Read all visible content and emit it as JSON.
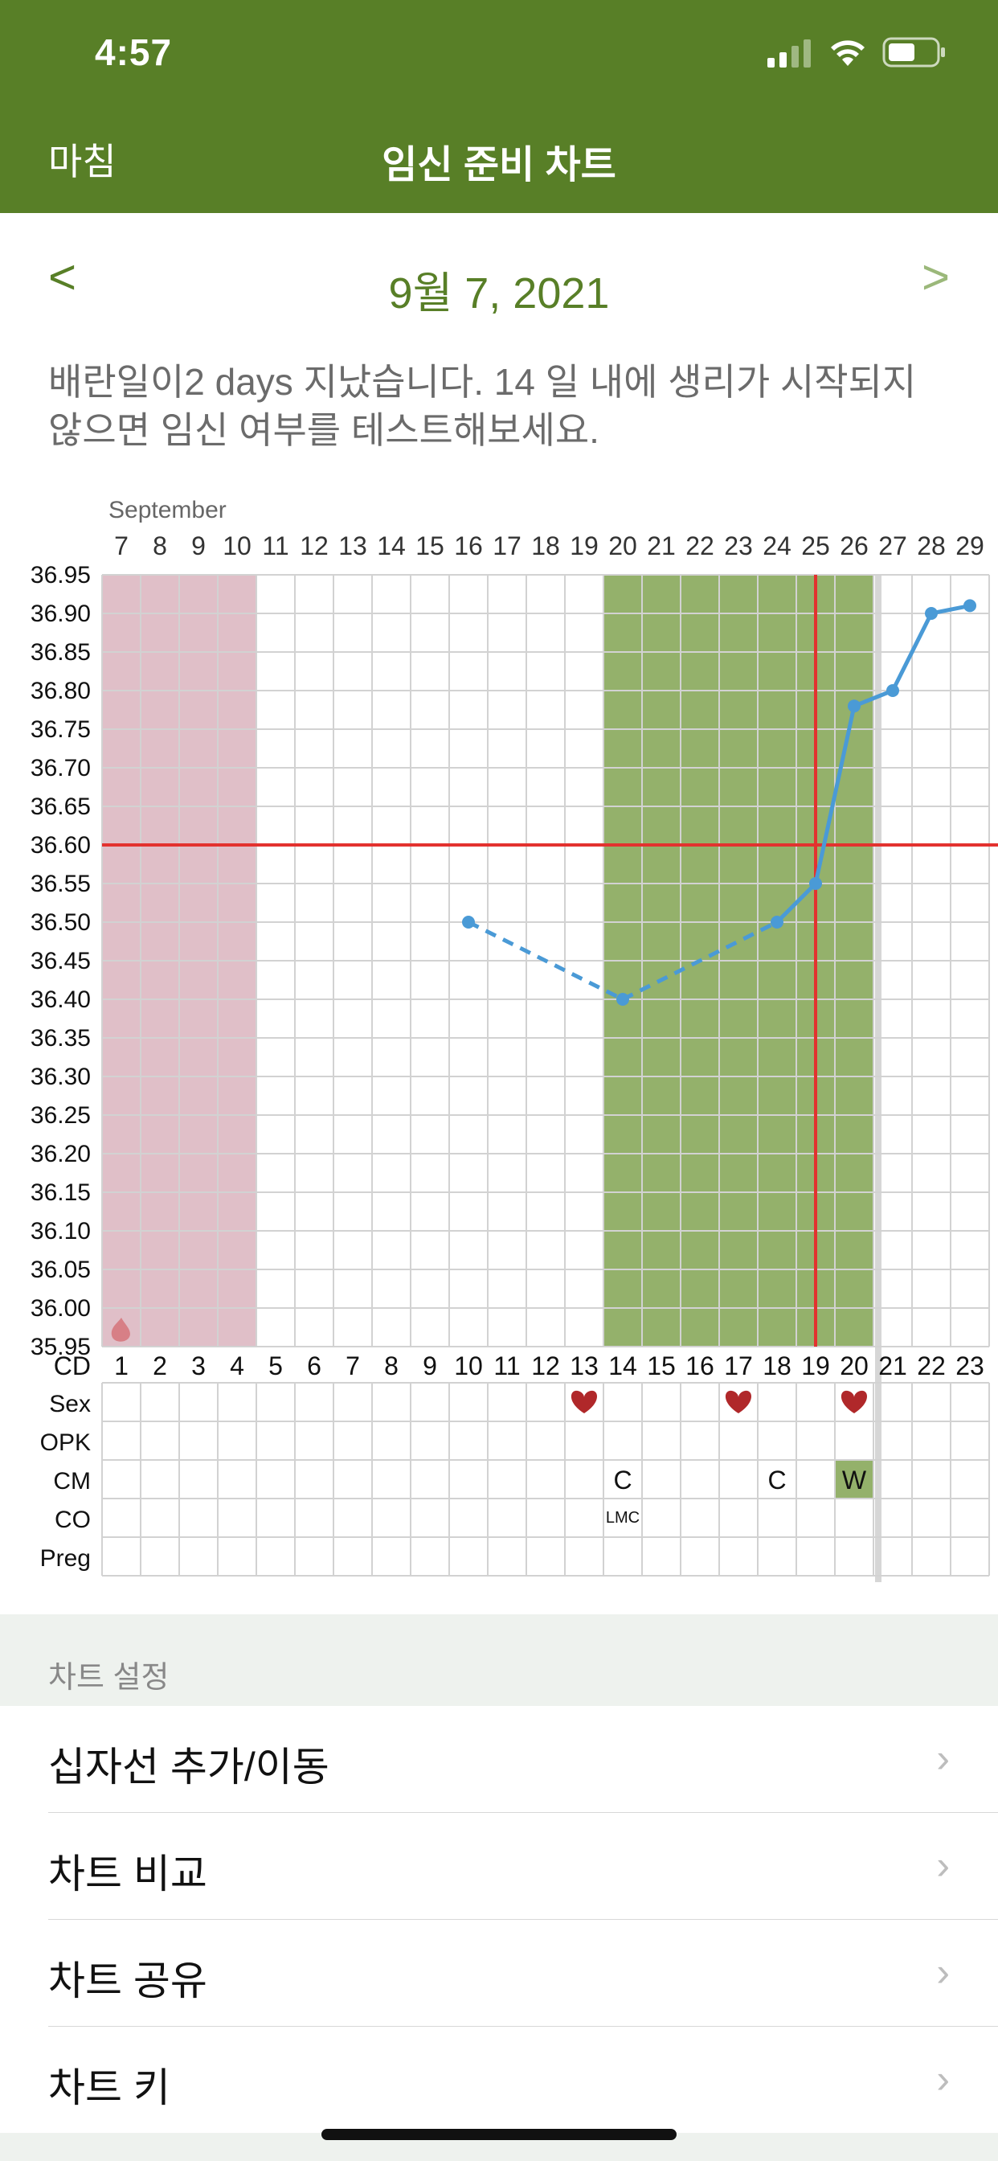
{
  "status_bar": {
    "time": "4:57"
  },
  "nav": {
    "done": "마침",
    "title": "임신 준비 차트"
  },
  "date": {
    "prev": "<",
    "label": "9월 7, 2021",
    "next": ">"
  },
  "message": "배란일이2 days 지났습니다. 14 일 내에 생리가 시작되지 않으면 임신 여부를 테스트해보세요.",
  "chart_data": {
    "type": "line",
    "month_label": "September",
    "dates": [
      "7",
      "8",
      "9",
      "10",
      "11",
      "12",
      "13",
      "14",
      "15",
      "16",
      "17",
      "18",
      "19",
      "20",
      "21",
      "22",
      "23",
      "24",
      "25",
      "26",
      "27",
      "28",
      "29"
    ],
    "cycle_days": [
      "1",
      "2",
      "3",
      "4",
      "5",
      "6",
      "7",
      "8",
      "9",
      "10",
      "11",
      "12",
      "13",
      "14",
      "15",
      "16",
      "17",
      "18",
      "19",
      "20",
      "21",
      "22",
      "23"
    ],
    "y_ticks": [
      "36.95",
      "36.90",
      "36.85",
      "36.80",
      "36.75",
      "36.70",
      "36.65",
      "36.60",
      "36.55",
      "36.50",
      "36.45",
      "36.40",
      "36.35",
      "36.30",
      "36.25",
      "36.20",
      "36.15",
      "36.10",
      "36.05",
      "36.00",
      "35.95"
    ],
    "ylim": [
      35.95,
      36.95
    ],
    "series": [
      {
        "values": [
          {
            "cd": 10,
            "y": 36.5
          },
          {
            "cd": 14,
            "y": 36.4
          },
          {
            "cd": 18,
            "y": 36.5
          },
          {
            "cd": 19,
            "y": 36.55
          },
          {
            "cd": 20,
            "y": 36.78
          },
          {
            "cd": 21,
            "y": 36.8
          },
          {
            "cd": 22,
            "y": 36.9
          },
          {
            "cd": 23,
            "y": 36.91
          }
        ],
        "dashed_segments": [
          [
            10,
            14
          ],
          [
            14,
            18
          ]
        ]
      }
    ],
    "coverline": 36.6,
    "ovulation_day": 19,
    "period_days": [
      1,
      4
    ],
    "fertile_window": [
      14,
      20
    ],
    "today_marker_day": 21,
    "period_start_day": 1,
    "row_labels": [
      "CD",
      "Sex",
      "OPK",
      "CM",
      "CO",
      "Preg"
    ],
    "sex_days": [
      13,
      17,
      20
    ],
    "cm": [
      {
        "cd": 14,
        "text": "C"
      },
      {
        "cd": 18,
        "text": "C"
      },
      {
        "cd": 20,
        "text": "W"
      }
    ],
    "co": [
      {
        "cd": 14,
        "text": "LMC"
      }
    ],
    "colors": {
      "period": "#e0bfc8",
      "fertile": "#94b16b",
      "line": "#4a9ad6",
      "coverline": "#e3322f",
      "cm_w": "#94b16b"
    }
  },
  "settings": {
    "header": "차트 설정",
    "items": [
      {
        "label": "십자선 추가/이동"
      },
      {
        "label": "차트 비교"
      },
      {
        "label": "차트 공유"
      },
      {
        "label": "차트 키"
      }
    ]
  }
}
